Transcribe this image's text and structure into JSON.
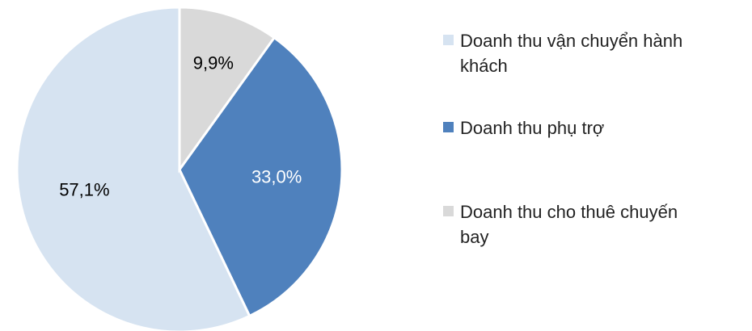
{
  "chart_data": {
    "type": "pie",
    "categories": [
      "Doanh thu vận chuyển hành khách",
      "Doanh thu phụ trợ",
      "Doanh thu cho thuê chuyến bay"
    ],
    "values": [
      57.1,
      33.0,
      9.9
    ],
    "value_labels": [
      "57,1%",
      "33,0%",
      "9,9%"
    ],
    "colors": [
      "#d6e3f1",
      "#4f81bd",
      "#d9d9d9"
    ],
    "label_colors": [
      "#000000",
      "#ffffff",
      "#000000"
    ],
    "legend": "right"
  }
}
